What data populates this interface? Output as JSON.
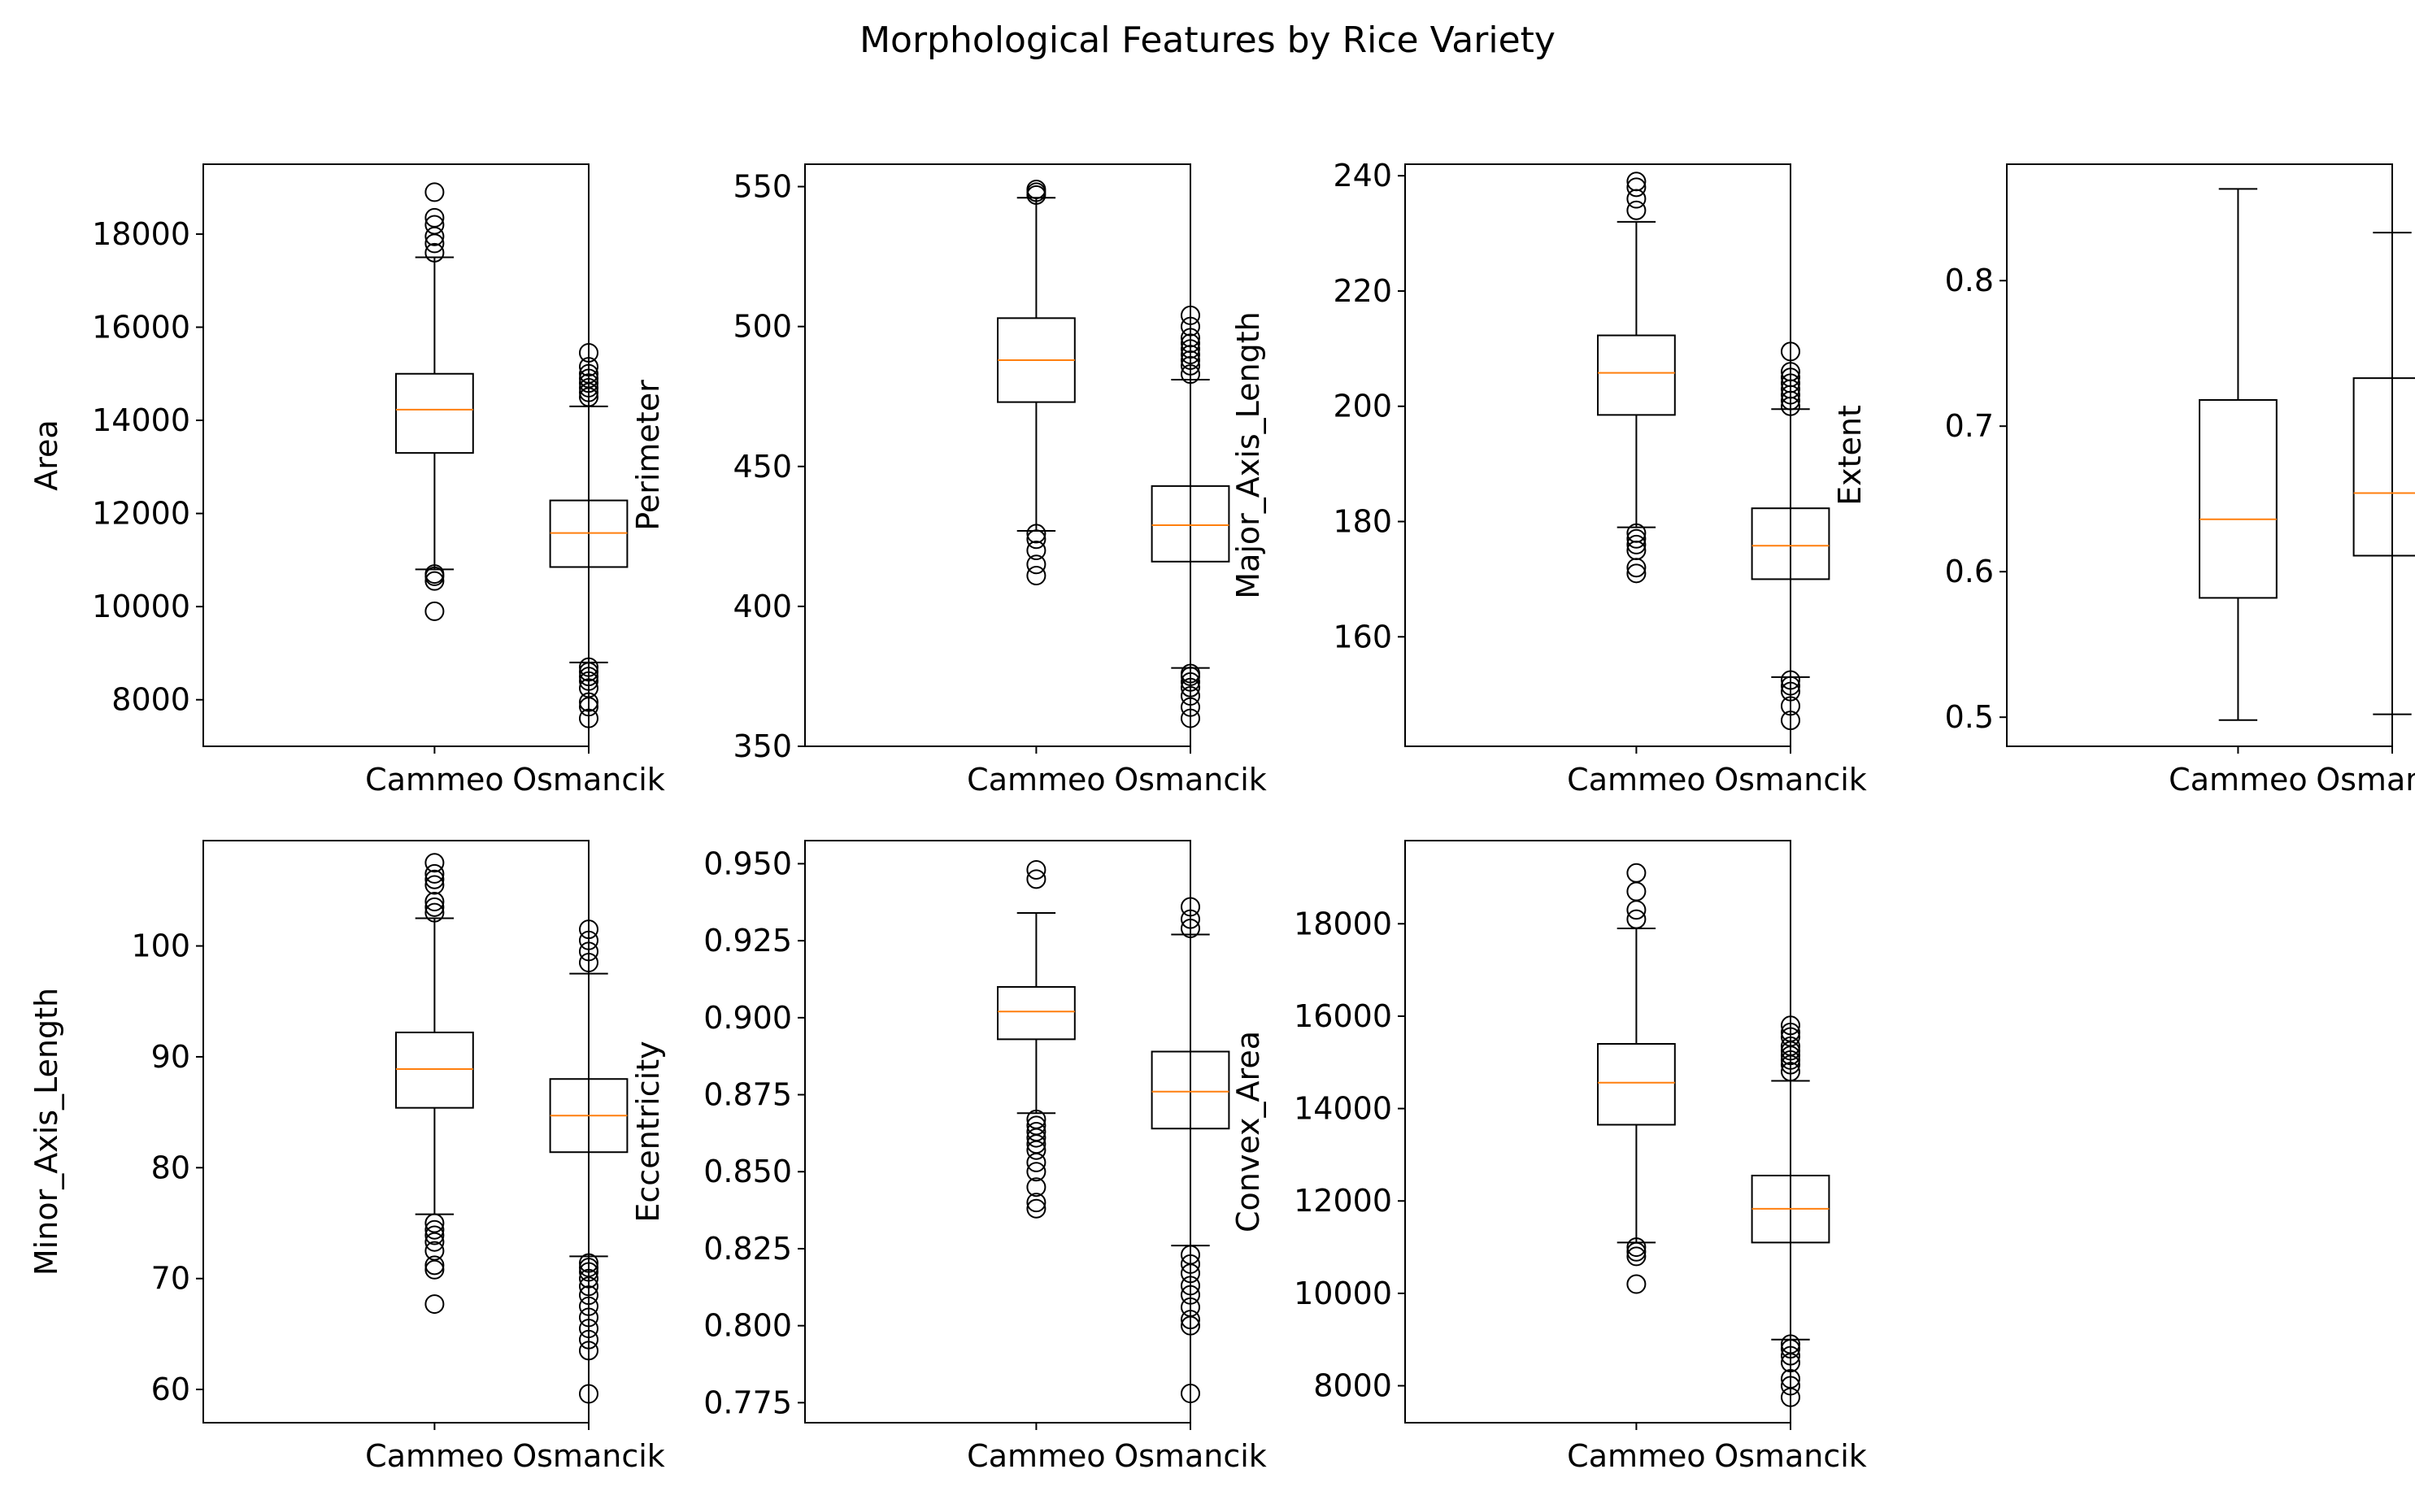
{
  "figure": {
    "title": "Morphological Features by Rice Variety"
  },
  "style": {
    "box_color": "#000000",
    "median_color": "#ff7f0e",
    "flier_color": "#000000"
  },
  "chart_data": [
    {
      "type": "boxplot",
      "ylabel": "Area",
      "categories": [
        "Cammeo",
        "Osmancik"
      ],
      "ylim": [
        7000,
        19500
      ],
      "yticks": [
        8000,
        10000,
        12000,
        14000,
        16000,
        18000
      ],
      "ytick_labels": [
        "8000",
        "10000",
        "12000",
        "14000",
        "16000",
        "18000"
      ],
      "boxes": [
        {
          "whislo": 10800,
          "q1": 13300,
          "med": 14230,
          "q3": 15000,
          "whishi": 17500,
          "fliers": [
            9900,
            10550,
            10650,
            10700,
            17600,
            17800,
            17950,
            18200,
            18350,
            18900
          ]
        },
        {
          "whislo": 8800,
          "q1": 10850,
          "med": 11580,
          "q3": 12280,
          "whishi": 14300,
          "fliers": [
            7600,
            7850,
            7950,
            8250,
            8400,
            8500,
            8600,
            8700,
            14500,
            14600,
            14700,
            14800,
            14900,
            15000,
            15150,
            15450
          ]
        }
      ]
    },
    {
      "type": "boxplot",
      "ylabel": "Perimeter",
      "categories": [
        "Cammeo",
        "Osmancik"
      ],
      "ylim": [
        350,
        558
      ],
      "yticks": [
        350,
        400,
        450,
        500,
        550
      ],
      "ytick_labels": [
        "350",
        "400",
        "450",
        "500",
        "550"
      ],
      "boxes": [
        {
          "whislo": 427,
          "q1": 473,
          "med": 488,
          "q3": 503,
          "whishi": 546,
          "fliers": [
            411,
            415,
            420,
            424,
            426,
            547,
            548,
            549
          ]
        },
        {
          "whislo": 378,
          "q1": 416,
          "med": 429,
          "q3": 443,
          "whishi": 481,
          "fliers": [
            360,
            364,
            368,
            371,
            373,
            375,
            376,
            483,
            486,
            488,
            490,
            492,
            494,
            496,
            500,
            504
          ]
        }
      ]
    },
    {
      "type": "boxplot",
      "ylabel": "Major_Axis_Length",
      "categories": [
        "Cammeo",
        "Osmancik"
      ],
      "ylim": [
        141,
        242
      ],
      "yticks": [
        160,
        180,
        200,
        220,
        240
      ],
      "ytick_labels": [
        "160",
        "180",
        "200",
        "220",
        "240"
      ],
      "boxes": [
        {
          "whislo": 179,
          "q1": 198.5,
          "med": 205.8,
          "q3": 212.3,
          "whishi": 232,
          "fliers": [
            171,
            172,
            175,
            176,
            177,
            178,
            234,
            236,
            238,
            239
          ]
        },
        {
          "whislo": 153,
          "q1": 170,
          "med": 175.8,
          "q3": 182.3,
          "whishi": 199.5,
          "fliers": [
            145.5,
            148,
            150.5,
            151.5,
            152.5,
            200,
            201,
            202,
            203,
            204,
            205,
            206,
            209.5
          ]
        }
      ]
    },
    {
      "type": "boxplot",
      "ylabel": "Extent",
      "categories": [
        "Cammeo",
        "Osmancik"
      ],
      "ylim": [
        0.48,
        0.88
      ],
      "yticks": [
        0.5,
        0.6,
        0.7,
        0.8
      ],
      "ytick_labels": [
        "0.5",
        "0.6",
        "0.7",
        "0.8"
      ],
      "boxes": [
        {
          "whislo": 0.498,
          "q1": 0.582,
          "med": 0.636,
          "q3": 0.718,
          "whishi": 0.863,
          "fliers": []
        },
        {
          "whislo": 0.502,
          "q1": 0.611,
          "med": 0.654,
          "q3": 0.733,
          "whishi": 0.833,
          "fliers": []
        }
      ]
    },
    {
      "type": "boxplot",
      "ylabel": "Minor_Axis_Length",
      "categories": [
        "Cammeo",
        "Osmancik"
      ],
      "ylim": [
        57,
        109.5
      ],
      "yticks": [
        60,
        70,
        80,
        90,
        100
      ],
      "ytick_labels": [
        "60",
        "70",
        "80",
        "90",
        "100"
      ],
      "boxes": [
        {
          "whislo": 75.8,
          "q1": 85.4,
          "med": 88.9,
          "q3": 92.2,
          "whishi": 102.5,
          "fliers": [
            67.7,
            70.8,
            71.2,
            72.5,
            73.3,
            73.9,
            74.4,
            75,
            103,
            103.5,
            104,
            105.5,
            106,
            106.5,
            107.5
          ]
        },
        {
          "whislo": 72,
          "q1": 81.4,
          "med": 84.7,
          "q3": 88,
          "whishi": 97.5,
          "fliers": [
            59.6,
            63.5,
            64.5,
            65.5,
            66.5,
            67.5,
            68.5,
            69.3,
            70,
            70.6,
            71,
            71.4,
            98.5,
            99.5,
            100.5,
            101.5
          ]
        }
      ]
    },
    {
      "type": "boxplot",
      "ylabel": "Eccentricity",
      "categories": [
        "Cammeo",
        "Osmancik"
      ],
      "ylim": [
        0.7685,
        0.9575
      ],
      "yticks": [
        0.775,
        0.8,
        0.825,
        0.85,
        0.875,
        0.9,
        0.925,
        0.95
      ],
      "ytick_labels": [
        "0.775",
        "0.800",
        "0.825",
        "0.850",
        "0.875",
        "0.900",
        "0.925",
        "0.950"
      ],
      "boxes": [
        {
          "whislo": 0.869,
          "q1": 0.893,
          "med": 0.902,
          "q3": 0.91,
          "whishi": 0.934,
          "fliers": [
            0.838,
            0.84,
            0.845,
            0.85,
            0.853,
            0.857,
            0.859,
            0.861,
            0.863,
            0.865,
            0.867,
            0.945,
            0.948
          ]
        },
        {
          "whislo": 0.826,
          "q1": 0.864,
          "med": 0.876,
          "q3": 0.889,
          "whishi": 0.927,
          "fliers": [
            0.778,
            0.8,
            0.802,
            0.806,
            0.81,
            0.813,
            0.817,
            0.82,
            0.823,
            0.929,
            0.932,
            0.936
          ]
        }
      ]
    },
    {
      "type": "boxplot",
      "ylabel": "Convex_Area",
      "categories": [
        "Cammeo",
        "Osmancik"
      ],
      "ylim": [
        7200,
        19800
      ],
      "yticks": [
        8000,
        10000,
        12000,
        14000,
        16000,
        18000
      ],
      "ytick_labels": [
        "8000",
        "10000",
        "12000",
        "14000",
        "16000",
        "18000"
      ],
      "boxes": [
        {
          "whislo": 11100,
          "q1": 13650,
          "med": 14560,
          "q3": 15400,
          "whishi": 17900,
          "fliers": [
            10200,
            10800,
            10900,
            11000,
            18100,
            18300,
            18700,
            19100
          ]
        },
        {
          "whislo": 9000,
          "q1": 11100,
          "med": 11830,
          "q3": 12550,
          "whishi": 14600,
          "fliers": [
            7750,
            8000,
            8150,
            8500,
            8650,
            8800,
            8900,
            14800,
            14950,
            15050,
            15150,
            15250,
            15350,
            15550,
            15650,
            15800
          ]
        }
      ]
    }
  ]
}
